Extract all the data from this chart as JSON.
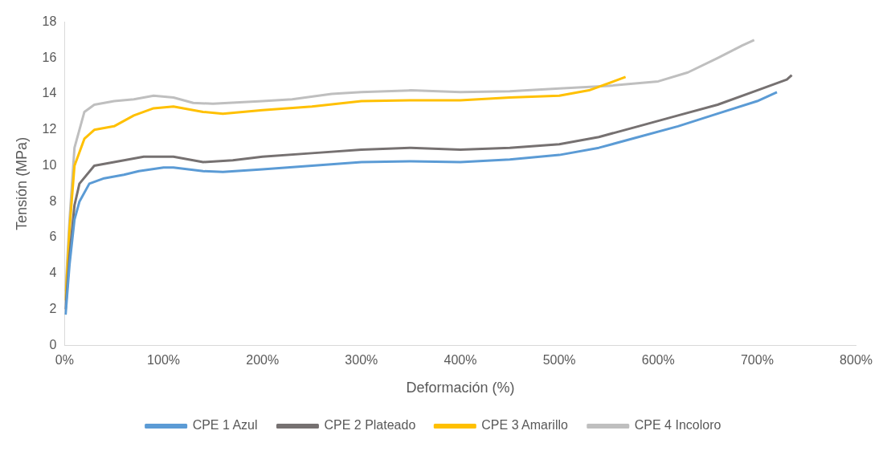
{
  "chart_data": {
    "type": "line",
    "xlabel": "Deformación (%)",
    "ylabel": "Tensión (MPa)",
    "xlim": [
      0,
      800
    ],
    "xticks": [
      {
        "value": 0,
        "label": "0%"
      },
      {
        "value": 100,
        "label": "100%"
      },
      {
        "value": 200,
        "label": "200%"
      },
      {
        "value": 300,
        "label": "300%"
      },
      {
        "value": 400,
        "label": "400%"
      },
      {
        "value": 500,
        "label": "500%"
      },
      {
        "value": 600,
        "label": "600%"
      },
      {
        "value": 700,
        "label": "700%"
      },
      {
        "value": 800,
        "label": "800%"
      }
    ],
    "ylim": [
      0,
      18
    ],
    "yticks": [
      0,
      2,
      4,
      6,
      8,
      10,
      12,
      14,
      16,
      18
    ],
    "grid": false,
    "legend": "bottom",
    "marker": "none",
    "line_style": "solid",
    "series": [
      {
        "name": "CPE 1 Azul",
        "color": "#5b9bd5",
        "x": [
          1,
          5,
          10,
          15,
          25,
          40,
          60,
          75,
          100,
          110,
          140,
          160,
          200,
          250,
          300,
          350,
          400,
          450,
          500,
          540,
          580,
          620,
          660,
          700,
          720
        ],
        "values": [
          1.7,
          4.5,
          7,
          8,
          9,
          9.3,
          9.5,
          9.7,
          9.9,
          9.9,
          9.7,
          9.65,
          9.8,
          10,
          10.2,
          10.25,
          10.2,
          10.35,
          10.6,
          11,
          11.6,
          12.2,
          12.9,
          13.6,
          14.1
        ]
      },
      {
        "name": "CPE 2 Plateado",
        "color": "#767171",
        "x": [
          1,
          5,
          10,
          15,
          30,
          50,
          80,
          110,
          140,
          170,
          200,
          250,
          300,
          350,
          400,
          450,
          500,
          540,
          580,
          620,
          660,
          700,
          730,
          735
        ],
        "values": [
          2,
          5,
          7.8,
          9,
          10,
          10.2,
          10.5,
          10.5,
          10.2,
          10.3,
          10.5,
          10.7,
          10.9,
          11,
          10.9,
          11,
          11.2,
          11.6,
          12.2,
          12.8,
          13.4,
          14.2,
          14.8,
          15.05
        ]
      },
      {
        "name": "CPE 3 Amarillo",
        "color": "#ffc000",
        "x": [
          1,
          5,
          10,
          20,
          30,
          50,
          70,
          90,
          110,
          140,
          160,
          200,
          250,
          300,
          350,
          400,
          450,
          500,
          530,
          555,
          567
        ],
        "values": [
          2.5,
          6.5,
          10,
          11.5,
          12,
          12.2,
          12.8,
          13.2,
          13.3,
          13,
          12.9,
          13.1,
          13.3,
          13.6,
          13.65,
          13.65,
          13.8,
          13.9,
          14.2,
          14.7,
          14.95
        ]
      },
      {
        "name": "CPE 4 Incoloro",
        "color": "#bfbfbf",
        "x": [
          1,
          5,
          10,
          20,
          30,
          50,
          70,
          90,
          110,
          130,
          150,
          200,
          230,
          270,
          300,
          350,
          400,
          450,
          500,
          550,
          600,
          630,
          660,
          685,
          697
        ],
        "values": [
          3,
          7,
          11,
          13,
          13.4,
          13.6,
          13.7,
          13.9,
          13.8,
          13.5,
          13.45,
          13.6,
          13.7,
          14,
          14.1,
          14.2,
          14.1,
          14.15,
          14.3,
          14.45,
          14.7,
          15.2,
          16,
          16.7,
          17
        ]
      }
    ]
  }
}
